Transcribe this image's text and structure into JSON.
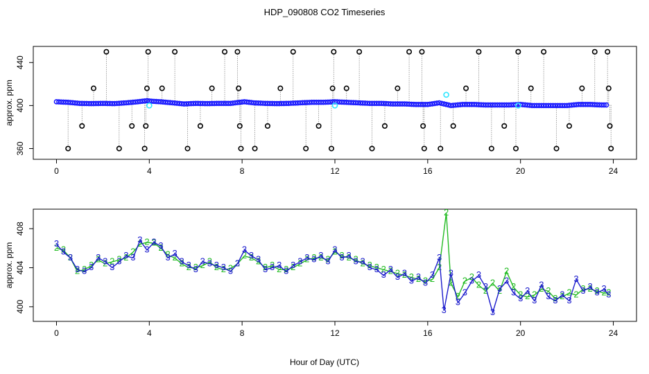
{
  "title": "HDP_090808  CO2 Timeseries",
  "colors": {
    "outlier": "#000000",
    "main": "#1a1aff",
    "highlight": "#2ee6ff",
    "green": "#22bb22",
    "blue_digit": "#1a1acc",
    "spike": "#888888"
  },
  "chart_data": [
    {
      "type": "scatter",
      "name": "top-panel",
      "xlabel": "",
      "ylabel": "approx. ppm",
      "xlim": [
        -1,
        25
      ],
      "ylim": [
        350,
        455
      ],
      "xticks": [
        0,
        4,
        8,
        12,
        16,
        20,
        24
      ],
      "yticks": [
        360,
        400,
        440
      ],
      "baseline": [
        [
          0.0,
          403.5
        ],
        [
          0.5,
          403.0
        ],
        [
          1.0,
          402.0
        ],
        [
          1.5,
          401.8
        ],
        [
          2.0,
          402.0
        ],
        [
          2.5,
          401.8
        ],
        [
          3.0,
          402.5
        ],
        [
          3.5,
          403.5
        ],
        [
          3.9,
          404.5
        ],
        [
          4.1,
          404.0
        ],
        [
          4.5,
          403.5
        ],
        [
          5.0,
          402.5
        ],
        [
          5.5,
          401.5
        ],
        [
          6.0,
          402.0
        ],
        [
          6.5,
          401.8
        ],
        [
          7.0,
          402.0
        ],
        [
          7.5,
          402.0
        ],
        [
          7.9,
          403.0
        ],
        [
          8.1,
          403.5
        ],
        [
          8.5,
          402.5
        ],
        [
          9.0,
          402.0
        ],
        [
          9.5,
          401.8
        ],
        [
          10.0,
          402.0
        ],
        [
          10.5,
          402.5
        ],
        [
          11.0,
          403.0
        ],
        [
          11.5,
          403.0
        ],
        [
          12.0,
          403.5
        ],
        [
          12.5,
          403.0
        ],
        [
          13.0,
          402.5
        ],
        [
          13.5,
          402.0
        ],
        [
          14.0,
          402.0
        ],
        [
          14.5,
          401.5
        ],
        [
          15.0,
          401.5
        ],
        [
          15.5,
          401.0
        ],
        [
          16.0,
          401.0
        ],
        [
          16.5,
          402.5
        ],
        [
          17.0,
          400.0
        ],
        [
          17.5,
          401.0
        ],
        [
          18.0,
          401.0
        ],
        [
          18.5,
          400.5
        ],
        [
          19.0,
          400.5
        ],
        [
          19.5,
          400.5
        ],
        [
          20.0,
          401.0
        ],
        [
          20.5,
          400.0
        ],
        [
          21.0,
          400.0
        ],
        [
          21.5,
          400.0
        ],
        [
          22.0,
          400.0
        ],
        [
          22.5,
          401.0
        ],
        [
          23.0,
          401.0
        ],
        [
          23.5,
          400.5
        ],
        [
          23.8,
          400.5
        ]
      ],
      "outliers": [
        [
          0.5,
          360
        ],
        [
          1.1,
          381
        ],
        [
          1.6,
          416
        ],
        [
          2.15,
          450
        ],
        [
          2.7,
          360
        ],
        [
          3.25,
          381
        ],
        [
          3.8,
          360
        ],
        [
          3.85,
          381
        ],
        [
          3.9,
          416
        ],
        [
          3.95,
          450
        ],
        [
          4.55,
          416
        ],
        [
          5.1,
          450
        ],
        [
          5.65,
          360
        ],
        [
          6.2,
          381
        ],
        [
          6.7,
          416
        ],
        [
          7.25,
          450
        ],
        [
          7.8,
          450
        ],
        [
          7.85,
          416
        ],
        [
          7.9,
          381
        ],
        [
          7.95,
          360
        ],
        [
          8.55,
          360
        ],
        [
          9.1,
          381
        ],
        [
          9.65,
          416
        ],
        [
          10.2,
          450
        ],
        [
          10.75,
          360
        ],
        [
          11.3,
          381
        ],
        [
          11.85,
          360
        ],
        [
          11.9,
          416
        ],
        [
          11.95,
          450
        ],
        [
          12.5,
          416
        ],
        [
          13.05,
          450
        ],
        [
          13.6,
          360
        ],
        [
          14.15,
          381
        ],
        [
          14.7,
          416
        ],
        [
          15.2,
          450
        ],
        [
          15.75,
          450
        ],
        [
          15.8,
          381
        ],
        [
          15.85,
          360
        ],
        [
          16.55,
          360
        ],
        [
          17.1,
          381
        ],
        [
          17.65,
          416
        ],
        [
          18.2,
          450
        ],
        [
          18.75,
          360
        ],
        [
          19.3,
          381
        ],
        [
          19.8,
          360
        ],
        [
          19.9,
          450
        ],
        [
          20.45,
          416
        ],
        [
          21.0,
          450
        ],
        [
          21.55,
          360
        ],
        [
          22.1,
          381
        ],
        [
          22.65,
          416
        ],
        [
          23.2,
          450
        ],
        [
          23.75,
          450
        ],
        [
          23.8,
          416
        ],
        [
          23.85,
          381
        ],
        [
          23.9,
          360
        ]
      ],
      "highlights": [
        [
          4.0,
          400
        ],
        [
          12.0,
          400
        ],
        [
          16.8,
          410
        ],
        [
          19.9,
          400
        ]
      ],
      "spikes_visible": true
    },
    {
      "type": "line",
      "name": "bottom-panel",
      "xlabel": "Hour of Day (UTC)",
      "ylabel": "approx. ppm",
      "xlim": [
        -1,
        25
      ],
      "ylim": [
        398.5,
        410
      ],
      "xticks": [
        0,
        4,
        8,
        12,
        16,
        20,
        24
      ],
      "yticks": [
        400,
        404,
        408
      ],
      "series": [
        {
          "name": "2",
          "marker": "2",
          "color": "green",
          "values": [
            [
              0.0,
              406.0
            ],
            [
              0.3,
              405.8
            ],
            [
              0.6,
              405.0
            ],
            [
              0.9,
              403.6
            ],
            [
              1.2,
              403.8
            ],
            [
              1.5,
              404.2
            ],
            [
              1.8,
              404.8
            ],
            [
              2.1,
              404.4
            ],
            [
              2.4,
              404.6
            ],
            [
              2.7,
              404.8
            ],
            [
              3.0,
              405.0
            ],
            [
              3.3,
              405.6
            ],
            [
              3.6,
              406.4
            ],
            [
              3.9,
              406.6
            ],
            [
              4.2,
              406.5
            ],
            [
              4.5,
              406.0
            ],
            [
              4.8,
              405.3
            ],
            [
              5.1,
              405.0
            ],
            [
              5.4,
              404.4
            ],
            [
              5.7,
              404.0
            ],
            [
              6.0,
              404.0
            ],
            [
              6.3,
              404.2
            ],
            [
              6.6,
              404.6
            ],
            [
              6.9,
              404.0
            ],
            [
              7.2,
              403.8
            ],
            [
              7.5,
              403.9
            ],
            [
              7.8,
              404.4
            ],
            [
              8.1,
              405.2
            ],
            [
              8.4,
              405.0
            ],
            [
              8.7,
              404.6
            ],
            [
              9.0,
              404.0
            ],
            [
              9.3,
              404.2
            ],
            [
              9.6,
              403.8
            ],
            [
              9.9,
              403.8
            ],
            [
              10.2,
              404.0
            ],
            [
              10.5,
              404.4
            ],
            [
              10.8,
              404.8
            ],
            [
              11.1,
              405.0
            ],
            [
              11.4,
              405.0
            ],
            [
              11.7,
              404.8
            ],
            [
              12.0,
              405.6
            ],
            [
              12.3,
              405.2
            ],
            [
              12.6,
              405.0
            ],
            [
              12.9,
              404.8
            ],
            [
              13.2,
              404.4
            ],
            [
              13.5,
              404.2
            ],
            [
              13.8,
              404.0
            ],
            [
              14.1,
              403.8
            ],
            [
              14.4,
              403.6
            ],
            [
              14.7,
              403.4
            ],
            [
              15.0,
              403.2
            ],
            [
              15.3,
              403.0
            ],
            [
              15.6,
              402.8
            ],
            [
              15.9,
              402.6
            ],
            [
              16.2,
              402.8
            ],
            [
              16.5,
              404.0
            ],
            [
              16.8,
              409.6
            ],
            [
              17.0,
              402.4
            ],
            [
              17.3,
              401.0
            ],
            [
              17.6,
              402.6
            ],
            [
              17.9,
              403.0
            ],
            [
              18.2,
              402.2
            ],
            [
              18.5,
              401.6
            ],
            [
              18.8,
              402.4
            ],
            [
              19.1,
              401.6
            ],
            [
              19.4,
              403.6
            ],
            [
              19.7,
              402.0
            ],
            [
              20.0,
              401.2
            ],
            [
              20.3,
              401.0
            ],
            [
              20.6,
              401.2
            ],
            [
              20.9,
              401.8
            ],
            [
              21.2,
              401.6
            ],
            [
              21.5,
              400.8
            ],
            [
              21.8,
              401.0
            ],
            [
              22.1,
              401.4
            ],
            [
              22.4,
              401.2
            ],
            [
              22.7,
              401.8
            ],
            [
              23.0,
              401.8
            ],
            [
              23.3,
              401.6
            ],
            [
              23.6,
              401.4
            ],
            [
              23.8,
              401.4
            ]
          ]
        },
        {
          "name": "3",
          "marker": "3",
          "color": "blue_digit",
          "values": [
            [
              0.0,
              406.4
            ],
            [
              0.3,
              405.6
            ],
            [
              0.6,
              405.0
            ],
            [
              0.9,
              403.8
            ],
            [
              1.2,
              403.6
            ],
            [
              1.5,
              404.0
            ],
            [
              1.8,
              405.0
            ],
            [
              2.1,
              404.6
            ],
            [
              2.4,
              404.0
            ],
            [
              2.7,
              404.6
            ],
            [
              3.0,
              405.2
            ],
            [
              3.3,
              405.0
            ],
            [
              3.6,
              406.8
            ],
            [
              3.9,
              405.8
            ],
            [
              4.2,
              406.6
            ],
            [
              4.5,
              406.2
            ],
            [
              4.8,
              405.0
            ],
            [
              5.1,
              405.4
            ],
            [
              5.4,
              404.6
            ],
            [
              5.7,
              404.2
            ],
            [
              6.0,
              403.8
            ],
            [
              6.3,
              404.6
            ],
            [
              6.6,
              404.4
            ],
            [
              6.9,
              404.2
            ],
            [
              7.2,
              404.0
            ],
            [
              7.5,
              403.6
            ],
            [
              7.8,
              404.4
            ],
            [
              8.1,
              405.8
            ],
            [
              8.4,
              405.2
            ],
            [
              8.7,
              404.8
            ],
            [
              9.0,
              403.8
            ],
            [
              9.3,
              404.0
            ],
            [
              9.6,
              404.2
            ],
            [
              9.9,
              403.6
            ],
            [
              10.2,
              404.2
            ],
            [
              10.5,
              404.6
            ],
            [
              10.8,
              405.0
            ],
            [
              11.1,
              404.8
            ],
            [
              11.4,
              405.2
            ],
            [
              11.7,
              404.6
            ],
            [
              12.0,
              405.8
            ],
            [
              12.3,
              405.0
            ],
            [
              12.6,
              405.2
            ],
            [
              12.9,
              404.6
            ],
            [
              13.2,
              404.6
            ],
            [
              13.5,
              404.0
            ],
            [
              13.8,
              403.8
            ],
            [
              14.1,
              403.2
            ],
            [
              14.4,
              403.8
            ],
            [
              14.7,
              403.0
            ],
            [
              15.0,
              403.4
            ],
            [
              15.3,
              402.6
            ],
            [
              15.6,
              403.0
            ],
            [
              15.9,
              402.4
            ],
            [
              16.2,
              403.2
            ],
            [
              16.5,
              405.0
            ],
            [
              16.7,
              399.6
            ],
            [
              17.0,
              403.4
            ],
            [
              17.3,
              400.4
            ],
            [
              17.6,
              401.4
            ],
            [
              17.9,
              402.6
            ],
            [
              18.2,
              403.2
            ],
            [
              18.5,
              402.0
            ],
            [
              18.8,
              399.4
            ],
            [
              19.1,
              401.8
            ],
            [
              19.4,
              402.6
            ],
            [
              19.7,
              401.4
            ],
            [
              20.0,
              400.8
            ],
            [
              20.3,
              401.6
            ],
            [
              20.6,
              400.6
            ],
            [
              20.9,
              402.2
            ],
            [
              21.2,
              401.0
            ],
            [
              21.5,
              400.6
            ],
            [
              21.8,
              401.2
            ],
            [
              22.1,
              400.6
            ],
            [
              22.4,
              402.8
            ],
            [
              22.7,
              401.6
            ],
            [
              23.0,
              402.0
            ],
            [
              23.3,
              401.4
            ],
            [
              23.6,
              401.8
            ],
            [
              23.8,
              401.2
            ]
          ]
        }
      ]
    }
  ]
}
